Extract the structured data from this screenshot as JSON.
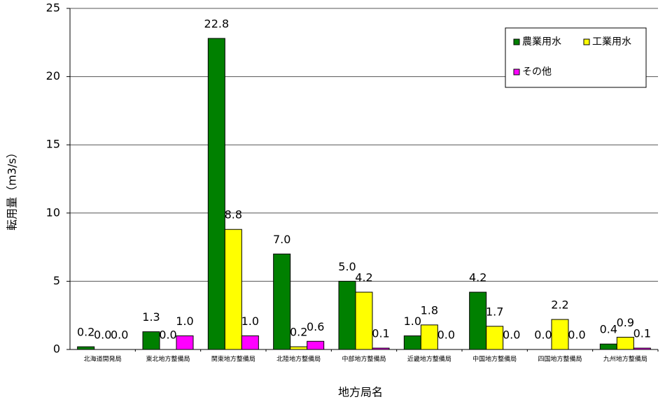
{
  "chart_data": {
    "type": "bar",
    "x_label": "地方局名",
    "y_label": "転用量（m3/s）",
    "categories": [
      "北海道開発局",
      "東北地方整備局",
      "関東地方整備局",
      "北陸地方整備局",
      "中部地方整備局",
      "近畿地方整備局",
      "中国地方整備局",
      "四国地方整備局",
      "九州地方整備局"
    ],
    "series": [
      {
        "name": "農業用水",
        "color": "#008000",
        "values": [
          0.2,
          1.3,
          22.8,
          7.0,
          5.0,
          1.0,
          4.2,
          0.0,
          0.4
        ],
        "value_labels": [
          "0.2",
          "1.3",
          "22.8",
          "7.0",
          "5.0",
          "1.0",
          "4.2",
          "0.0",
          "0.4"
        ]
      },
      {
        "name": "工業用水",
        "color": "#ffff00",
        "values": [
          0.0,
          0.0,
          8.8,
          0.2,
          4.2,
          1.8,
          1.7,
          2.2,
          0.9
        ],
        "value_labels": [
          "0.0",
          "0.0",
          "8.8",
          "0.2",
          "4.2",
          "1.8",
          "1.7",
          "2.2",
          "0.9"
        ]
      },
      {
        "name": "その他",
        "color": "#ff00ff",
        "values": [
          0.0,
          1.0,
          1.0,
          0.6,
          0.1,
          0.0,
          0.0,
          0.0,
          0.1
        ],
        "value_labels": [
          "0.0",
          "1.0",
          "1.0",
          "0.6",
          "0.1",
          "0.0",
          "0.0",
          "0.0",
          "0.1"
        ]
      }
    ],
    "ylim": [
      0,
      25
    ],
    "yticks": [
      0,
      5,
      10,
      15,
      20,
      25
    ],
    "grid": true
  }
}
